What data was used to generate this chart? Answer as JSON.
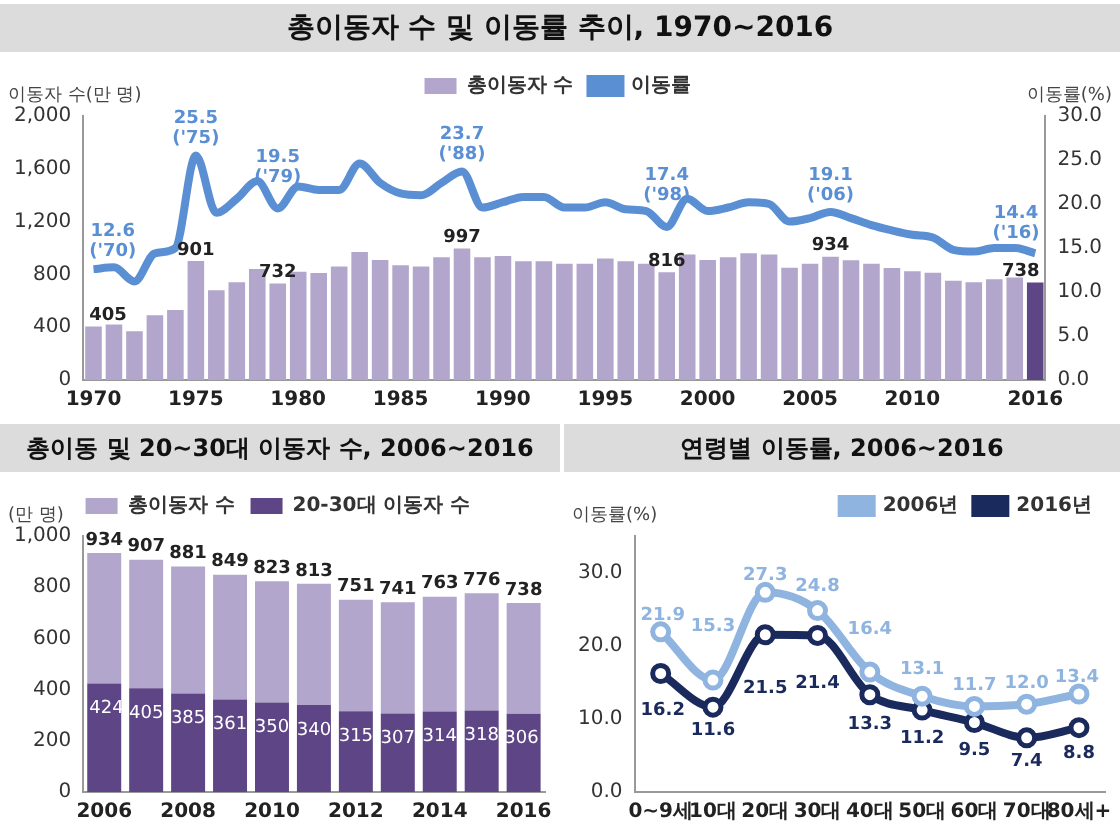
{
  "chart_data": [
    {
      "type": "bar",
      "title": "총이동자 수 및 이동률 추이, 1970~2016",
      "ylabel": "이동자 수(만 명)",
      "y2label": "이동률(%)",
      "legend": "top",
      "categories": [
        "1970",
        null,
        null,
        null,
        null,
        "1975",
        null,
        null,
        null,
        null,
        "1980",
        null,
        null,
        null,
        null,
        "1985",
        null,
        null,
        null,
        null,
        "1990",
        null,
        null,
        null,
        null,
        "1995",
        null,
        null,
        null,
        null,
        "2000",
        null,
        null,
        null,
        null,
        "2005",
        null,
        null,
        null,
        null,
        "2010",
        null,
        null,
        null,
        null,
        null,
        "2016"
      ],
      "ylim": [
        0,
        2000
      ],
      "yticks": [
        0,
        {
          "value": 400,
          "label": "400"
        },
        {
          "value": 800,
          "label": "800"
        },
        {
          "value": 1200,
          "label": "1,200"
        },
        {
          "value": 1600,
          "label": "1,600"
        },
        {
          "value": 2000,
          "label": "2,000"
        }
      ],
      "y2lim": [
        0,
        30
      ],
      "y2ticks": [
        {
          "value": 0,
          "label": "0.0"
        },
        {
          "value": 5,
          "label": "5.0"
        },
        {
          "value": 10,
          "label": "10.0"
        },
        {
          "value": 15,
          "label": "15.0"
        },
        {
          "value": 20,
          "label": "20.0"
        },
        {
          "value": 25,
          "label": "25.0"
        },
        {
          "value": 30,
          "label": "30.0"
        }
      ],
      "series": [
        {
          "name": "총이동자 수",
          "color": "#b3a6cc",
          "colors": [
            "#b3a6cc",
            "#b3a6cc",
            "#b3a6cc",
            "#b3a6cc",
            "#b3a6cc",
            "#b3a6cc",
            "#b3a6cc",
            "#b3a6cc",
            "#b3a6cc",
            "#b3a6cc",
            "#b3a6cc",
            "#b3a6cc",
            "#b3a6cc",
            "#b3a6cc",
            "#b3a6cc",
            "#b3a6cc",
            "#b3a6cc",
            "#b3a6cc",
            "#b3a6cc",
            "#b3a6cc",
            "#b3a6cc",
            "#b3a6cc",
            "#b3a6cc",
            "#b3a6cc",
            "#b3a6cc",
            "#b3a6cc",
            "#b3a6cc",
            "#b3a6cc",
            "#b3a6cc",
            "#b3a6cc",
            "#b3a6cc",
            "#b3a6cc",
            "#b3a6cc",
            "#b3a6cc",
            "#b3a6cc",
            "#b3a6cc",
            "#b3a6cc",
            "#b3a6cc",
            "#b3a6cc",
            "#b3a6cc",
            "#b3a6cc",
            "#b3a6cc",
            "#b3a6cc",
            "#b3a6cc",
            "#b3a6cc",
            "#b3a6cc",
            "#5e4585"
          ],
          "values": [
            405,
            420,
            370,
            490,
            530,
            901,
            680,
            740,
            840,
            732,
            820,
            810,
            860,
            970,
            910,
            870,
            860,
            930,
            997,
            930,
            940,
            900,
            900,
            880,
            880,
            920,
            900,
            880,
            816,
            950,
            910,
            930,
            960,
            950,
            850,
            880,
            934,
            907,
            881,
            849,
            823,
            813,
            751,
            741,
            763,
            776,
            738
          ],
          "value_labels": [
            "405",
            null,
            null,
            null,
            null,
            "901",
            null,
            null,
            null,
            "732",
            null,
            null,
            null,
            null,
            null,
            null,
            null,
            null,
            "997",
            null,
            null,
            null,
            null,
            null,
            null,
            null,
            null,
            null,
            "816",
            null,
            null,
            null,
            null,
            null,
            null,
            null,
            "934",
            null,
            null,
            null,
            null,
            null,
            null,
            null,
            null,
            null,
            "738"
          ]
        },
        {
          "name": "이동률",
          "type": "line",
          "axis": "y2",
          "color": "#5b8fd4",
          "values": [
            12.6,
            12.8,
            11.2,
            14.4,
            15.0,
            25.5,
            19.0,
            20.6,
            22.6,
            19.5,
            22.0,
            21.6,
            21.6,
            24.6,
            22.4,
            21.2,
            21.0,
            22.4,
            23.7,
            19.6,
            20.2,
            20.8,
            20.8,
            19.6,
            19.6,
            20.2,
            19.4,
            19.2,
            17.4,
            20.6,
            19.2,
            19.6,
            20.2,
            20.0,
            18.0,
            18.4,
            19.1,
            18.4,
            17.6,
            17.0,
            16.5,
            16.2,
            14.8,
            14.6,
            15.0,
            15.0,
            14.4
          ],
          "value_labels": [
            "12.6\n('70)",
            null,
            null,
            null,
            null,
            "25.5\n('75)",
            null,
            null,
            null,
            "19.5\n('79)",
            null,
            null,
            null,
            null,
            null,
            null,
            null,
            null,
            "23.7\n('88)",
            null,
            null,
            null,
            null,
            null,
            null,
            null,
            null,
            null,
            "17.4\n('98)",
            null,
            null,
            null,
            null,
            null,
            null,
            null,
            "19.1\n('06)",
            null,
            null,
            null,
            null,
            null,
            null,
            null,
            null,
            null,
            "14.4\n('16)"
          ]
        }
      ]
    },
    {
      "type": "bar",
      "stacked": true,
      "title": "총이동 및 20~30대 이동자 수, 2006~2016",
      "ylabel": "(만 명)",
      "legend": "top",
      "categories": [
        "2006",
        null,
        "2008",
        null,
        "2010",
        null,
        "2012",
        null,
        "2014",
        null,
        "2016"
      ],
      "ylim": [
        0,
        1000
      ],
      "yticks": [
        0,
        200,
        400,
        600,
        800,
        {
          "value": 1000,
          "label": "1,000"
        }
      ],
      "totals": [
        "934",
        "907",
        "881",
        "849",
        "823",
        "813",
        "751",
        "741",
        "763",
        "776",
        "738"
      ],
      "series": [
        {
          "name": "20-30대 이동자 수",
          "color": "#5e4585",
          "values": [
            424,
            405,
            385,
            361,
            350,
            340,
            315,
            307,
            314,
            318,
            306
          ],
          "value_labels": [
            "424",
            "405",
            "385",
            "361",
            "350",
            "340",
            "315",
            "307",
            "314",
            "318",
            "306"
          ]
        },
        {
          "name": "총이동자 수",
          "color": "#b3a6cc",
          "values": [
            510,
            502,
            496,
            488,
            473,
            473,
            436,
            434,
            449,
            458,
            432
          ]
        }
      ]
    },
    {
      "type": "line",
      "title": "연령별 이동률, 2006~2016",
      "ylabel": "이동률(%)",
      "legend": "top right",
      "marker": "circle",
      "categories": [
        "0~9세",
        "10대",
        "20대",
        "30대",
        "40대",
        "50대",
        "60대",
        "70대",
        "80세+"
      ],
      "ylim": [
        0,
        35
      ],
      "yticks": [
        {
          "value": 0,
          "label": "0.0"
        },
        {
          "value": 10,
          "label": "10.0"
        },
        {
          "value": 20,
          "label": "20.0"
        },
        {
          "value": 30,
          "label": "30.0"
        }
      ],
      "series": [
        {
          "name": "2006년",
          "color": "#8fb4e0",
          "values": [
            21.9,
            15.3,
            27.3,
            24.8,
            16.4,
            13.1,
            11.7,
            12.0,
            13.4
          ],
          "value_labels": [
            "21.9",
            "15.3",
            "27.3",
            "24.8",
            "16.4",
            "13.1",
            "11.7",
            "12.0",
            "13.4"
          ]
        },
        {
          "name": "2016년",
          "color": "#1b2a5c",
          "values": [
            16.2,
            11.6,
            21.5,
            21.4,
            13.3,
            11.2,
            9.5,
            7.4,
            8.8
          ],
          "value_labels": [
            "16.2",
            "11.6",
            "21.5",
            "21.4",
            "13.3",
            "11.2",
            "9.5",
            "7.4",
            "8.8"
          ]
        }
      ]
    }
  ]
}
